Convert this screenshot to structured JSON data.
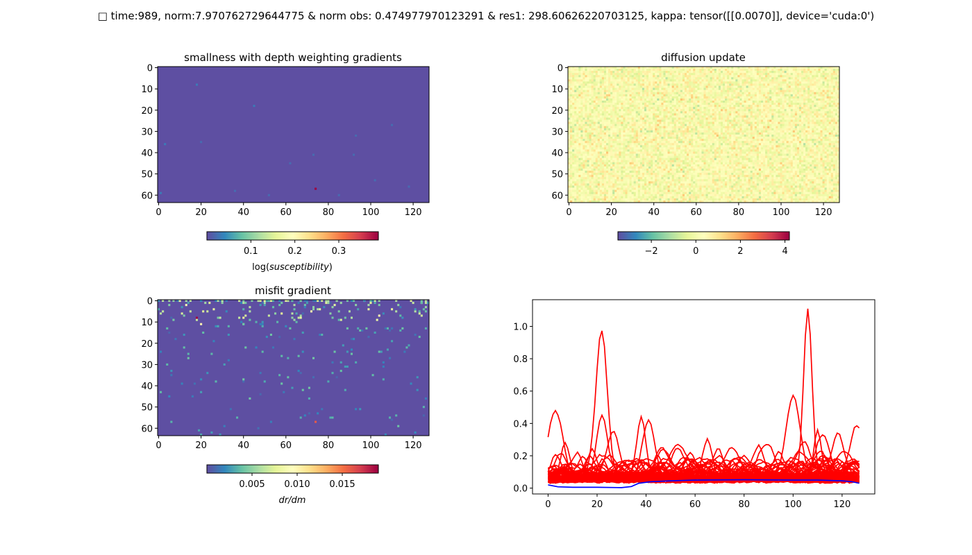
{
  "suptitle": "□ time:989, norm:7.970762729644775 & norm obs: 0.474977970123291 & res1: 298.60626220703125, kappa: tensor([[0.0070]], device='cuda:0')",
  "chart_data": [
    {
      "id": "smallness",
      "type": "heatmap",
      "title": "smallness with depth weighting gradients",
      "grid_cols": 128,
      "grid_rows": 64,
      "x_ticks": [
        "0",
        "20",
        "40",
        "60",
        "80",
        "100",
        "120"
      ],
      "x_tick_values": [
        0,
        20,
        40,
        60,
        80,
        100,
        120
      ],
      "y_ticks": [
        "0",
        "10",
        "20",
        "30",
        "40",
        "50",
        "60"
      ],
      "y_tick_values": [
        0,
        10,
        20,
        30,
        40,
        50,
        60
      ],
      "colormap": "Spectral_r",
      "vmin": 0.0,
      "vmax": 0.39,
      "colorbar_ticks": [
        "0.1",
        "0.2",
        "0.3"
      ],
      "colorbar_tick_values": [
        0.1,
        0.2,
        0.3
      ],
      "colorbar_label": "log(susceptibility)",
      "background_value": 0.0,
      "hot_cells": [
        {
          "col": 74,
          "row": 57,
          "value": 0.39
        },
        {
          "col": 18,
          "row": 8,
          "value": 0.03
        },
        {
          "col": 45,
          "row": 18,
          "value": 0.03
        },
        {
          "col": 93,
          "row": 32,
          "value": 0.02
        },
        {
          "col": 3,
          "row": 36,
          "value": 0.03
        },
        {
          "col": 20,
          "row": 35,
          "value": 0.02
        },
        {
          "col": 73,
          "row": 41,
          "value": 0.02
        },
        {
          "col": 92,
          "row": 41,
          "value": 0.02
        },
        {
          "col": 110,
          "row": 27,
          "value": 0.02
        },
        {
          "col": 62,
          "row": 45,
          "value": 0.02
        },
        {
          "col": 1,
          "row": 59,
          "value": 0.03
        },
        {
          "col": 52,
          "row": 60,
          "value": 0.02
        },
        {
          "col": 36,
          "row": 58,
          "value": 0.02
        },
        {
          "col": 102,
          "row": 53,
          "value": 0.02
        },
        {
          "col": 118,
          "row": 56,
          "value": 0.02
        },
        {
          "col": 85,
          "row": 60,
          "value": 0.02
        }
      ]
    },
    {
      "id": "diffusion",
      "type": "heatmap",
      "title": "diffusion update",
      "grid_cols": 128,
      "grid_rows": 64,
      "x_ticks": [
        "0",
        "20",
        "40",
        "60",
        "80",
        "100",
        "120"
      ],
      "x_tick_values": [
        0,
        20,
        40,
        60,
        80,
        100,
        120
      ],
      "y_ticks": [
        "0",
        "10",
        "20",
        "30",
        "40",
        "50",
        "60"
      ],
      "y_tick_values": [
        0,
        10,
        20,
        30,
        40,
        50,
        60
      ],
      "colormap": "Spectral_r",
      "vmin": -3.5,
      "vmax": 4.2,
      "colorbar_ticks": [
        "−2",
        "0",
        "2",
        "4"
      ],
      "colorbar_tick_values": [
        -2,
        0,
        2,
        4
      ],
      "colorbar_label": "",
      "pattern": "random-noise"
    },
    {
      "id": "misfit",
      "type": "heatmap",
      "title": "misfit gradient",
      "grid_cols": 128,
      "grid_rows": 64,
      "x_ticks": [
        "0",
        "20",
        "40",
        "60",
        "80",
        "100",
        "120"
      ],
      "x_tick_values": [
        0,
        20,
        40,
        60,
        80,
        100,
        120
      ],
      "y_ticks": [
        "0",
        "10",
        "20",
        "30",
        "40",
        "50",
        "60"
      ],
      "y_tick_values": [
        0,
        10,
        20,
        30,
        40,
        50,
        60
      ],
      "colormap": "Spectral_r",
      "vmin": 0.0,
      "vmax": 0.019,
      "colorbar_ticks": [
        "0.005",
        "0.010",
        "0.015"
      ],
      "colorbar_tick_values": [
        0.005,
        0.01,
        0.015
      ],
      "colorbar_label": "dr/dm",
      "background_value": 0.0,
      "hot_cells": [
        {
          "col": 18,
          "row": 8,
          "value": 0.019
        },
        {
          "col": 74,
          "row": 57,
          "value": 0.016
        },
        {
          "col": 72,
          "row": 5,
          "value": 0.01
        },
        {
          "col": 104,
          "row": 7,
          "value": 0.01
        },
        {
          "col": 20,
          "row": 11,
          "value": 0.01
        },
        {
          "col": 13,
          "row": 2,
          "value": 0.009
        }
      ]
    },
    {
      "id": "profiles",
      "type": "line",
      "x_range": [
        0,
        127
      ],
      "xlim": [
        -6.35,
        133.35
      ],
      "ylim": [
        -0.036,
        1.165
      ],
      "x_ticks": [
        "0",
        "20",
        "40",
        "60",
        "80",
        "100",
        "120"
      ],
      "x_tick_values": [
        0,
        20,
        40,
        60,
        80,
        100,
        120
      ],
      "y_ticks": [
        "0.0",
        "0.2",
        "0.4",
        "0.6",
        "0.8",
        "1.0"
      ],
      "y_tick_values": [
        0.0,
        0.2,
        0.4,
        0.6,
        0.8,
        1.0
      ],
      "red_color": "#ff0000",
      "blue_color": "#0000ff",
      "red_baseline": 0.065,
      "red_series_count": 64,
      "red_peaks": [
        {
          "x": 3,
          "y": 0.48
        },
        {
          "x": 22,
          "y": 0.92
        },
        {
          "x": 22,
          "y": 0.45
        },
        {
          "x": 38,
          "y": 0.44
        },
        {
          "x": 41,
          "y": 0.42
        },
        {
          "x": 106,
          "y": 1.11
        },
        {
          "x": 100,
          "y": 0.57
        },
        {
          "x": 110,
          "y": 0.36
        },
        {
          "x": 112,
          "y": 0.33
        },
        {
          "x": 126,
          "y": 0.39
        },
        {
          "x": 7,
          "y": 0.28
        },
        {
          "x": 18,
          "y": 0.24
        },
        {
          "x": 26,
          "y": 0.3
        },
        {
          "x": 65,
          "y": 0.3
        },
        {
          "x": 53,
          "y": 0.25
        },
        {
          "x": 75,
          "y": 0.25
        },
        {
          "x": 88,
          "y": 0.25
        },
        {
          "x": 118,
          "y": 0.3
        },
        {
          "x": 86,
          "y": 0.26
        },
        {
          "x": 58,
          "y": 0.22
        },
        {
          "x": 80,
          "y": 0.2
        },
        {
          "x": 45,
          "y": 0.2
        },
        {
          "x": 94,
          "y": 0.22
        },
        {
          "x": 122,
          "y": 0.18
        }
      ],
      "blue_points": [
        [
          0,
          0.02
        ],
        [
          4,
          0.008
        ],
        [
          10,
          0.005
        ],
        [
          20,
          0.005
        ],
        [
          30,
          0.003
        ],
        [
          34,
          0.01
        ],
        [
          37,
          0.03
        ],
        [
          42,
          0.04
        ],
        [
          50,
          0.045
        ],
        [
          60,
          0.05
        ],
        [
          80,
          0.052
        ],
        [
          100,
          0.05
        ],
        [
          110,
          0.05
        ],
        [
          120,
          0.045
        ],
        [
          124,
          0.04
        ],
        [
          127,
          0.03
        ]
      ]
    }
  ]
}
